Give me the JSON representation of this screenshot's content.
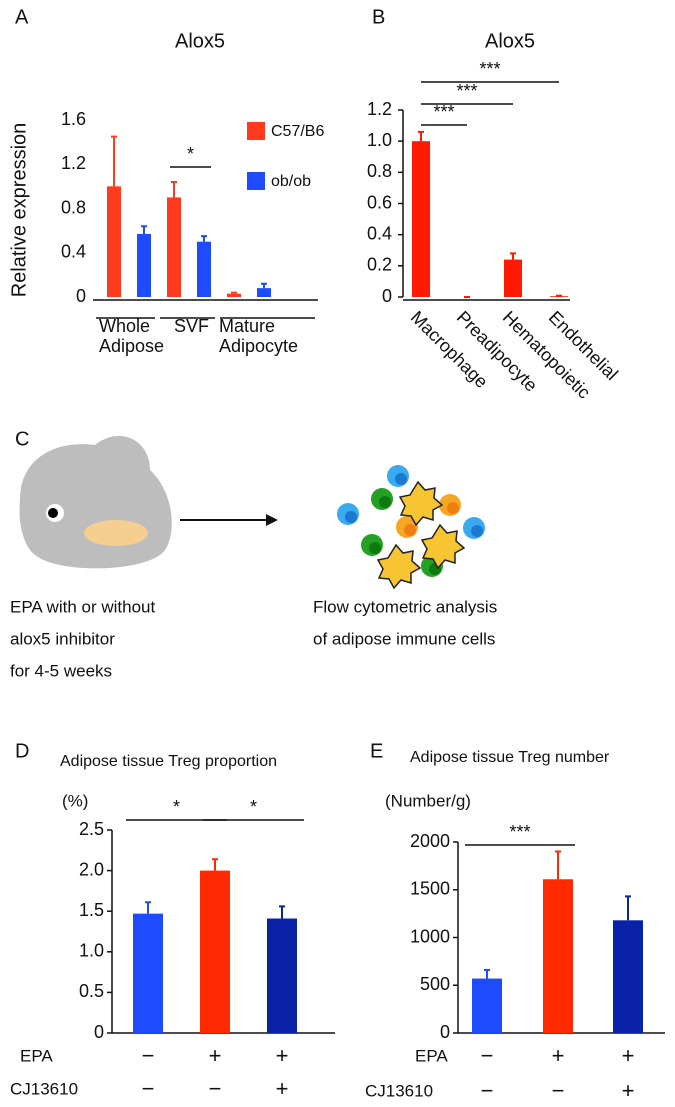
{
  "chart_data": [
    {
      "type": "bar",
      "panel_label": "A",
      "title": "Alox5",
      "y_label": "Relative expression",
      "categories": [
        [
          "Whole",
          "Adipose"
        ],
        [
          "SVF"
        ],
        [
          "Mature",
          "Adipocyte"
        ]
      ],
      "series": [
        {
          "name": "C57/B6",
          "color": "#ff3b1f",
          "values": [
            1.0,
            0.9,
            0.03
          ],
          "errors": [
            0.45,
            0.14,
            0.01
          ]
        },
        {
          "name": "ob/ob",
          "color": "#1f4bff",
          "values": [
            0.57,
            0.5,
            0.08
          ],
          "errors": [
            0.07,
            0.05,
            0.04
          ]
        }
      ],
      "ylim": [
        0,
        1.6
      ],
      "yticks": [
        0,
        0.4,
        0.8,
        1.2,
        1.6
      ],
      "annotations": [
        {
          "label": "*",
          "category": 1
        }
      ]
    },
    {
      "type": "bar",
      "panel_label": "B",
      "title": "Alox5",
      "categories": [
        "Macrophage",
        "Preadipocyte",
        "Hematopoietic",
        "Endothelial"
      ],
      "values": [
        1.0,
        0,
        0.24,
        0.005
      ],
      "errors": [
        0.06,
        0,
        0.04,
        0.003
      ],
      "color": "#ff1a00",
      "ylim": [
        0,
        1.2
      ],
      "yticks": [
        0,
        0.2,
        0.4,
        0.6,
        0.8,
        {
          "value": 1,
          "label": "1.0"
        },
        1.2
      ],
      "annotations": [
        {
          "label": "***",
          "from": 0,
          "to": 1
        },
        {
          "label": "***",
          "from": 0,
          "to": 2
        },
        {
          "label": "***",
          "from": 0,
          "to": 3
        }
      ]
    },
    {
      "type": "bar",
      "panel_label": "D",
      "title": "Adipose tissue Treg proportion",
      "y_label": "(%)",
      "values": [
        1.47,
        2.0,
        1.41
      ],
      "errors": [
        0.14,
        0.14,
        0.15
      ],
      "colors": [
        "#1f4bff",
        "#ff2a00",
        "#0a22a8"
      ],
      "conditions": [
        {
          "name": "EPA",
          "values": [
            "−",
            "+",
            "+"
          ]
        },
        {
          "name": "CJ13610",
          "values": [
            "−",
            "−",
            "+"
          ]
        }
      ],
      "ylim": [
        0,
        2.5
      ],
      "yticks": [
        0,
        0.5,
        {
          "value": 1,
          "label": "1.0"
        },
        1.5,
        {
          "value": 2,
          "label": "2.0"
        },
        2.5
      ],
      "annotations": [
        {
          "label": "*",
          "from": 0,
          "to": 1
        },
        {
          "label": "*",
          "from": 1,
          "to": 2
        }
      ]
    },
    {
      "type": "bar",
      "panel_label": "E",
      "title": "Adipose tissue Treg number",
      "y_label": "(Number/g)",
      "values": [
        570,
        1610,
        1180
      ],
      "errors": [
        90,
        290,
        250
      ],
      "colors": [
        "#1f4bff",
        "#ff2a00",
        "#0a22a8"
      ],
      "conditions": [
        {
          "name": "EPA",
          "values": [
            "−",
            "+",
            "+"
          ]
        },
        {
          "name": "CJ13610",
          "values": [
            "−",
            "−",
            "+"
          ]
        }
      ],
      "ylim": [
        0,
        2000
      ],
      "yticks": [
        0,
        500,
        1000,
        1500,
        2000
      ],
      "annotations": [
        {
          "label": "***",
          "from": 0,
          "to": 1
        }
      ]
    }
  ],
  "diagram": {
    "panel_label": "C",
    "left_text": [
      "EPA with or without",
      "alox5 inhibitor",
      "for 4-5 weeks"
    ],
    "right_text": [
      "Flow cytometric analysis",
      "of adipose immune cells"
    ]
  }
}
